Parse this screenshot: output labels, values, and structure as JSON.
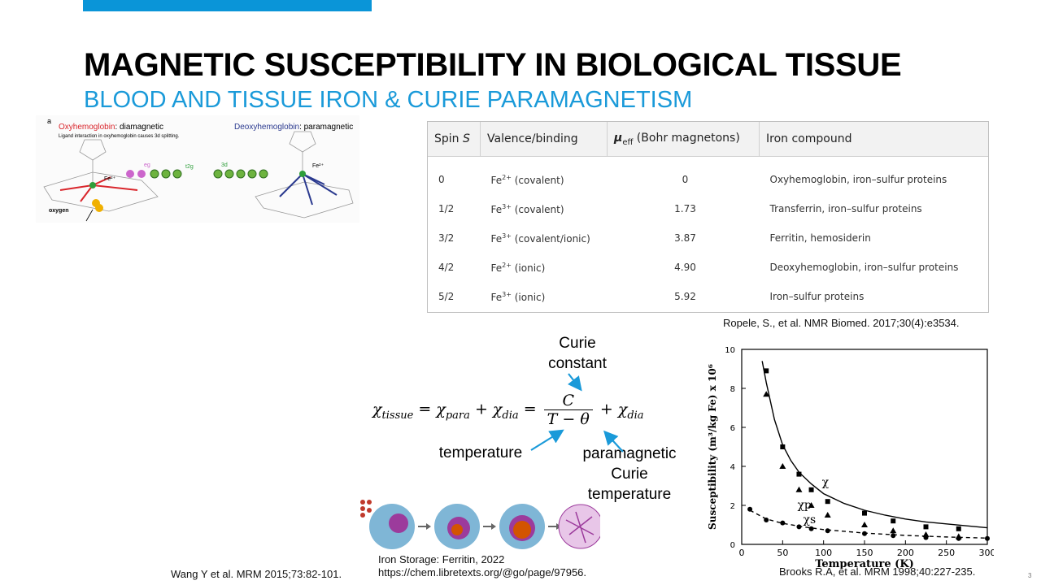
{
  "slide": {
    "title": "MAGNETIC SUSCEPTIBILITY IN BIOLOGICAL TISSUE",
    "subtitle": "BLOOD AND TISSUE IRON & CURIE PARAMAGNETISM",
    "page_number": "3",
    "accent_color": "#0a95d8"
  },
  "hemoglobin": {
    "panel_letter": "a",
    "oxy_name": "Oxyhemoglobin",
    "oxy_suffix": ": diamagnetic",
    "oxy_note": "Ligand interaction in oxyhemoglobin causes 3d splitting.",
    "deoxy_name": "Deoxyhemoglobin",
    "deoxy_suffix": ": paramagnetic",
    "fe_label_left": "Fe²⁺",
    "fe_label_right": "Fe²⁺",
    "eg_label": "eg",
    "t2g_label": "t2g",
    "d3_label": "3d",
    "oxygen_label": "oxygen",
    "oxy_color": "#d9262c",
    "deoxy_color": "#2b3a8f"
  },
  "spin_table": {
    "headers": [
      "Spin S",
      "Valence/binding",
      "μeff (Bohr magnetons)",
      "Iron compound"
    ],
    "rows": [
      {
        "spin": "0",
        "ion": "Fe",
        "charge": "2+",
        "binding": " (covalent)",
        "mu": "0",
        "compound": "Oxyhemoglobin, iron–sulfur proteins"
      },
      {
        "spin": "1/2",
        "ion": "Fe",
        "charge": "3+",
        "binding": " (covalent)",
        "mu": "1.73",
        "compound": "Transferrin, iron–sulfur proteins"
      },
      {
        "spin": "3/2",
        "ion": "Fe",
        "charge": "3+",
        "binding": " (covalent/ionic)",
        "mu": "3.87",
        "compound": "Ferritin, hemosiderin"
      },
      {
        "spin": "4/2",
        "ion": "Fe",
        "charge": "2+",
        "binding": " (ionic)",
        "mu": "4.90",
        "compound": "Deoxyhemoglobin, iron–sulfur proteins"
      },
      {
        "spin": "5/2",
        "ion": "Fe",
        "charge": "3+",
        "binding": " (ionic)",
        "mu": "5.92",
        "compound": "Iron–sulfur proteins"
      }
    ]
  },
  "citations": {
    "ropele": "Ropele, S., et al. NMR Biomed. 2017;30(4):e3534.",
    "wang": "Wang Y et al. MRM 2015;73:82-101.",
    "iron_storage_1": "Iron Storage: Ferritin, 2022",
    "iron_storage_2": "https://chem.libretexts.org/@go/page/97956.",
    "brooks": "Brooks R.A, et al. MRM 1998;40:227-235."
  },
  "equation": {
    "chi_tissue": "χtissue",
    "chi_para": "χpara",
    "chi_dia": "χdia",
    "numerator": "C",
    "denominator": "T − θ",
    "labels": {
      "curie_line1": "Curie",
      "curie_line2": "constant",
      "temperature": "temperature",
      "para_line1": "paramagnetic",
      "para_line2": "Curie",
      "para_line3": "temperature"
    }
  },
  "chart_data": {
    "type": "scatter",
    "title": "",
    "xlabel": "Temperature (K)",
    "ylabel": "Susceptibility (m³/kg Fe) x 10⁶",
    "xlim": [
      0,
      300
    ],
    "ylim": [
      0,
      10
    ],
    "xticks": [
      0,
      50,
      100,
      150,
      200,
      250,
      300
    ],
    "yticks": [
      0,
      2,
      4,
      6,
      8,
      10
    ],
    "series": [
      {
        "name": "χ",
        "marker": "square",
        "x": [
          30,
          50,
          70,
          85,
          105,
          150,
          185,
          225,
          265
        ],
        "y": [
          8.9,
          5.0,
          3.6,
          2.8,
          2.2,
          1.6,
          1.2,
          0.9,
          0.8
        ]
      },
      {
        "name": "χs",
        "marker": "triangle",
        "x": [
          30,
          50,
          70,
          85,
          105,
          150,
          185,
          225,
          265
        ],
        "y": [
          7.7,
          4.0,
          2.8,
          2.0,
          1.5,
          1.0,
          0.7,
          0.5,
          0.4
        ]
      },
      {
        "name": "χp",
        "marker": "circle",
        "x": [
          10,
          30,
          50,
          70,
          85,
          105,
          150,
          185,
          225,
          265,
          300
        ],
        "y": [
          1.8,
          1.25,
          1.1,
          0.9,
          0.8,
          0.7,
          0.55,
          0.45,
          0.35,
          0.3,
          0.3
        ]
      }
    ],
    "curves": [
      {
        "name": "χ fit",
        "style": "solid",
        "x": [
          25,
          30,
          40,
          50,
          60,
          70,
          85,
          100,
          125,
          150,
          175,
          200,
          225,
          250,
          275,
          300
        ],
        "y": [
          9.4,
          8.3,
          6.4,
          5.1,
          4.3,
          3.7,
          3.1,
          2.6,
          2.1,
          1.75,
          1.5,
          1.3,
          1.15,
          1.05,
          0.95,
          0.85
        ]
      },
      {
        "name": "χp fit",
        "style": "dashed",
        "x": [
          10,
          30,
          50,
          75,
          100,
          150,
          200,
          250,
          300
        ],
        "y": [
          1.75,
          1.3,
          1.08,
          0.9,
          0.76,
          0.58,
          0.46,
          0.38,
          0.32
        ]
      }
    ],
    "annotations": [
      "χ",
      "χs",
      "χp"
    ]
  }
}
